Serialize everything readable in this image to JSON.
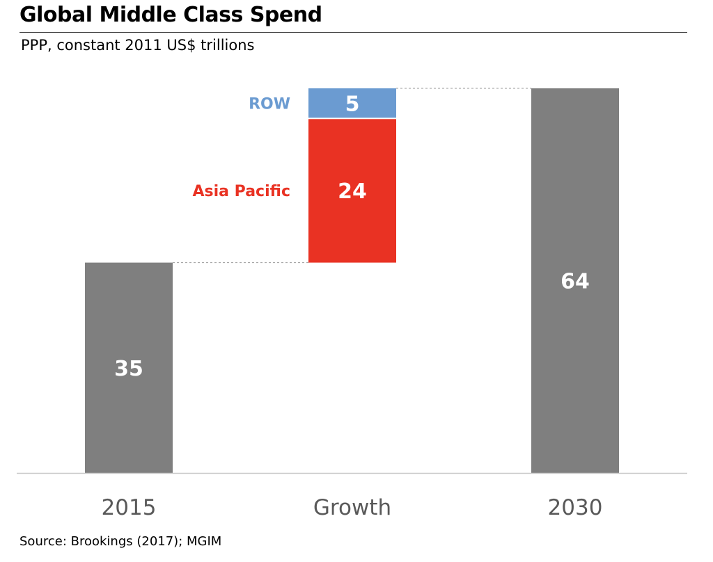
{
  "title": "Global Middle Class Spend",
  "subtitle": "PPP, constant 2011 US$ trillions",
  "source": "Source: Brookings (2017); MGIM",
  "chart_data": {
    "type": "waterfall",
    "categories": [
      "2015",
      "Growth",
      "2030"
    ],
    "bars": [
      {
        "category": "2015",
        "kind": "total",
        "value": 35,
        "label": "35",
        "color": "#7f7f7f"
      },
      {
        "category": "Growth",
        "kind": "increment",
        "series": "Asia Pacific",
        "value": 24,
        "label": "24",
        "color": "#e93223"
      },
      {
        "category": "Growth",
        "kind": "increment",
        "series": "ROW",
        "value": 5,
        "label": "5",
        "color": "#6b9bd1"
      },
      {
        "category": "2030",
        "kind": "total",
        "value": 64,
        "label": "64",
        "color": "#7f7f7f"
      }
    ],
    "series_labels": [
      {
        "name": "Asia Pacific",
        "color": "#e93223"
      },
      {
        "name": "ROW",
        "color": "#6b9bd1"
      }
    ],
    "ylim": [
      0,
      70
    ],
    "grid": false,
    "connector_lines": true
  }
}
